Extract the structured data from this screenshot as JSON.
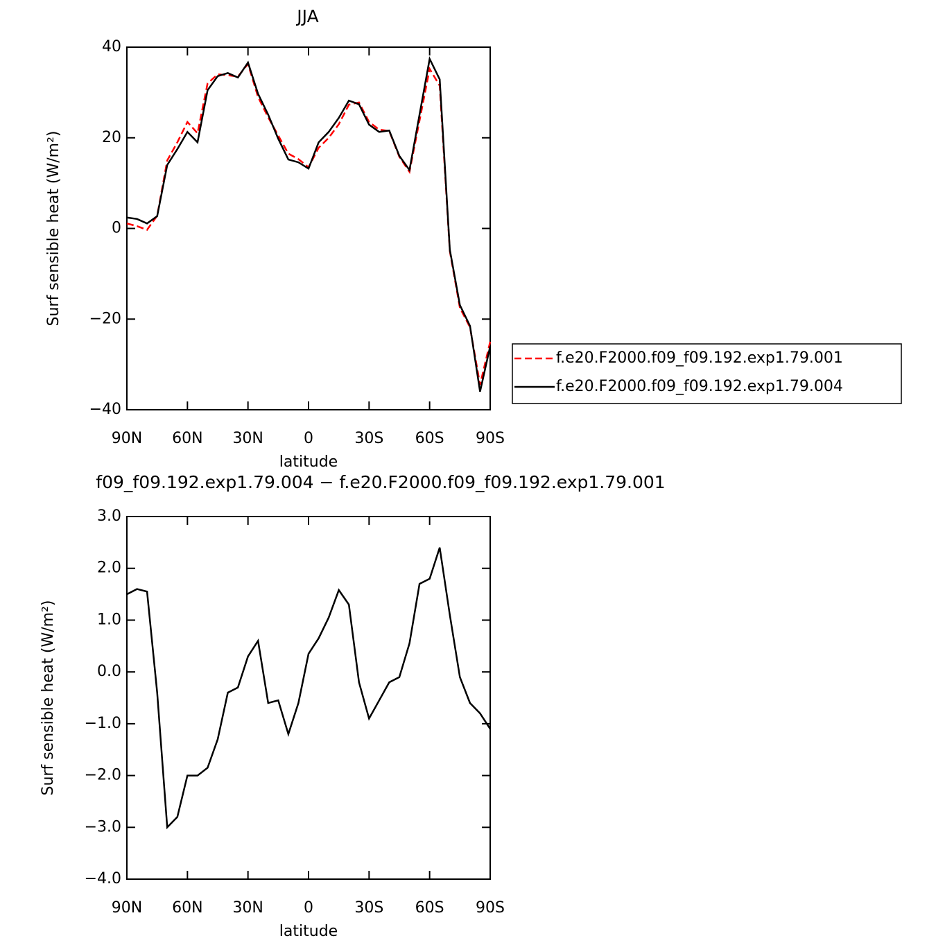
{
  "chart_data": [
    {
      "type": "line",
      "title": "JJA",
      "xlabel": "latitude",
      "ylabel": "Surf sensible heat (W/m²)",
      "x": [
        90,
        85,
        80,
        75,
        70,
        65,
        60,
        55,
        50,
        45,
        40,
        35,
        30,
        25,
        20,
        15,
        10,
        5,
        0,
        -5,
        -10,
        -15,
        -20,
        -25,
        -30,
        -35,
        -40,
        -45,
        -50,
        -55,
        -60,
        -65,
        -70,
        -75,
        -80,
        -85,
        -90
      ],
      "xlim": [
        90,
        -90
      ],
      "xticks": [
        {
          "value": 90,
          "label": "90N"
        },
        {
          "value": 60,
          "label": "60N"
        },
        {
          "value": 30,
          "label": "30N"
        },
        0,
        {
          "value": -30,
          "label": "30S"
        },
        {
          "value": -60,
          "label": "60S"
        },
        {
          "value": -90,
          "label": "90S"
        }
      ],
      "ylim": [
        -40,
        40
      ],
      "yticks": [
        {
          "value": -40,
          "label": "−40"
        },
        {
          "value": -20,
          "label": "−20"
        },
        0,
        20,
        40
      ],
      "legend": "outside-right",
      "series": [
        {
          "name": "f.e20.F2000.f09_f09.192.exp1.79.001",
          "color": "#ff0000",
          "dash": true,
          "values": [
            1.1,
            0.5,
            -0.3,
            2.8,
            15,
            19,
            23.5,
            21,
            32,
            34,
            33.8,
            33.5,
            36.3,
            29,
            24.5,
            20.5,
            16.5,
            15.3,
            13.5,
            17.8,
            20,
            23,
            27.3,
            27.8,
            23.5,
            21.8,
            21.5,
            15.8,
            12.5,
            23.8,
            35.2,
            31.5,
            -5,
            -17.5,
            -21.8,
            -34.5,
            -25
          ]
        },
        {
          "name": "f.e20.F2000.f09_f09.192.exp1.79.004",
          "color": "#000000",
          "dash": false,
          "values": [
            2.4,
            2.1,
            1.1,
            2.7,
            14,
            17.5,
            21.3,
            19,
            30.5,
            33.6,
            34.3,
            33.3,
            36.6,
            29.7,
            25.1,
            19.8,
            15.2,
            14.6,
            13.2,
            19,
            21.3,
            24.4,
            28.2,
            27.4,
            22.9,
            21.3,
            21.6,
            16,
            12.9,
            25.1,
            37.4,
            32.9,
            -4.7,
            -16.9,
            -21.5,
            -36,
            -26
          ]
        }
      ]
    },
    {
      "type": "line",
      "title": "f09_f09.192.exp1.79.004 − f.e20.F2000.f09_f09.192.exp1.79.001",
      "xlabel": "latitude",
      "ylabel": "Surf sensible heat (W/m²)",
      "x": [
        90,
        85,
        80,
        75,
        70,
        65,
        60,
        55,
        50,
        45,
        40,
        35,
        30,
        25,
        20,
        15,
        10,
        5,
        0,
        -5,
        -10,
        -15,
        -20,
        -25,
        -30,
        -35,
        -40,
        -45,
        -50,
        -55,
        -60,
        -65,
        -70,
        -75,
        -80,
        -85,
        -90
      ],
      "xlim": [
        90,
        -90
      ],
      "xticks": [
        {
          "value": 90,
          "label": "90N"
        },
        {
          "value": 60,
          "label": "60N"
        },
        {
          "value": 30,
          "label": "30N"
        },
        0,
        {
          "value": -30,
          "label": "30S"
        },
        {
          "value": -60,
          "label": "60S"
        },
        {
          "value": -90,
          "label": "90S"
        }
      ],
      "ylim": [
        -4,
        3
      ],
      "yticks": [
        {
          "value": -4,
          "label": "−4.0"
        },
        {
          "value": -3,
          "label": "−3.0"
        },
        {
          "value": -2,
          "label": "−2.0"
        },
        {
          "value": -1,
          "label": "−1.0"
        },
        {
          "value": 0,
          "label": "0.0"
        },
        {
          "value": 1,
          "label": "1.0"
        },
        {
          "value": 2,
          "label": "2.0"
        },
        {
          "value": 3,
          "label": "3.0"
        }
      ],
      "series": [
        {
          "color": "#000000",
          "dash": false,
          "values": [
            1.5,
            1.6,
            1.55,
            -0.4,
            -3.0,
            -2.8,
            -2.0,
            -2.0,
            -1.85,
            -1.3,
            -0.4,
            -0.3,
            0.3,
            0.6,
            -0.6,
            -0.55,
            -1.2,
            -0.6,
            0.35,
            0.65,
            1.05,
            1.58,
            1.3,
            -0.2,
            -0.9,
            -0.55,
            -0.2,
            -0.1,
            0.55,
            1.7,
            1.8,
            2.4,
            1.1,
            -0.1,
            -0.6,
            -0.8,
            -1.1
          ]
        }
      ]
    }
  ]
}
